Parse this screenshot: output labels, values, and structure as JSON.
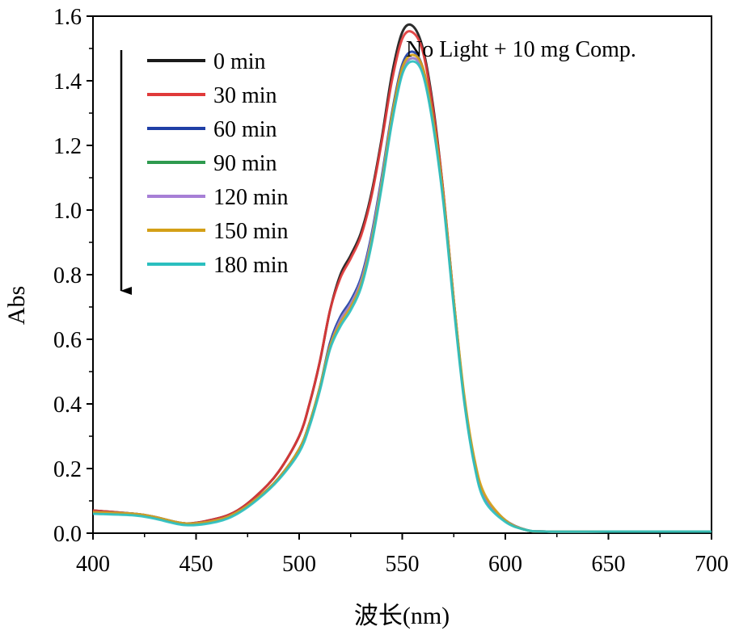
{
  "chart_data": {
    "type": "line",
    "title": "",
    "xlabel": "波长(nm)",
    "ylabel": "Abs",
    "xlim": [
      400,
      700
    ],
    "ylim": [
      0.0,
      1.6
    ],
    "xticks": [
      400,
      450,
      500,
      550,
      600,
      650,
      700
    ],
    "yticks": [
      0.0,
      0.2,
      0.4,
      0.6,
      0.8,
      1.0,
      1.2,
      1.4,
      1.6
    ],
    "xtick_labels": [
      "400",
      "450",
      "500",
      "550",
      "600",
      "650",
      "700"
    ],
    "ytick_labels": [
      "0.0",
      "0.2",
      "0.4",
      "0.6",
      "0.8",
      "1.0",
      "1.2",
      "1.4",
      "1.6"
    ],
    "annotation": "No Light + 10 mg Comp.",
    "legend_position": "top-left",
    "x": [
      400,
      420,
      430,
      445,
      460,
      470,
      480,
      490,
      500,
      505,
      510,
      515,
      520,
      525,
      530,
      535,
      540,
      545,
      550,
      555,
      560,
      565,
      570,
      575,
      580,
      585,
      590,
      600,
      610,
      620,
      650,
      700
    ],
    "series": [
      {
        "name": "0 min",
        "color": "#1a1a1a",
        "values": [
          0.07,
          0.06,
          0.05,
          0.03,
          0.045,
          0.07,
          0.12,
          0.19,
          0.3,
          0.4,
          0.53,
          0.69,
          0.8,
          0.86,
          0.93,
          1.05,
          1.22,
          1.42,
          1.55,
          1.57,
          1.5,
          1.32,
          1.05,
          0.72,
          0.42,
          0.22,
          0.11,
          0.04,
          0.01,
          0.005,
          0.005,
          0.005
        ]
      },
      {
        "name": "30 min",
        "color": "#e03a3a",
        "values": [
          0.07,
          0.06,
          0.05,
          0.03,
          0.045,
          0.07,
          0.12,
          0.19,
          0.3,
          0.4,
          0.53,
          0.69,
          0.79,
          0.85,
          0.92,
          1.04,
          1.21,
          1.4,
          1.53,
          1.55,
          1.49,
          1.31,
          1.05,
          0.72,
          0.42,
          0.22,
          0.11,
          0.04,
          0.01,
          0.005,
          0.005,
          0.005
        ]
      },
      {
        "name": "60 min",
        "color": "#1f3fa6",
        "values": [
          0.065,
          0.06,
          0.05,
          0.03,
          0.04,
          0.065,
          0.11,
          0.17,
          0.26,
          0.34,
          0.45,
          0.59,
          0.67,
          0.72,
          0.79,
          0.92,
          1.1,
          1.3,
          1.45,
          1.49,
          1.44,
          1.28,
          1.03,
          0.71,
          0.42,
          0.22,
          0.11,
          0.04,
          0.01,
          0.005,
          0.005,
          0.005
        ]
      },
      {
        "name": "90 min",
        "color": "#2e9a4f",
        "values": [
          0.065,
          0.06,
          0.05,
          0.03,
          0.04,
          0.065,
          0.11,
          0.17,
          0.26,
          0.34,
          0.45,
          0.58,
          0.66,
          0.71,
          0.78,
          0.91,
          1.09,
          1.29,
          1.43,
          1.47,
          1.43,
          1.27,
          1.03,
          0.71,
          0.42,
          0.22,
          0.11,
          0.04,
          0.01,
          0.005,
          0.005,
          0.005
        ]
      },
      {
        "name": "120 min",
        "color": "#a77fd6",
        "values": [
          0.065,
          0.06,
          0.05,
          0.03,
          0.04,
          0.065,
          0.11,
          0.17,
          0.26,
          0.34,
          0.45,
          0.58,
          0.66,
          0.71,
          0.78,
          0.91,
          1.09,
          1.29,
          1.43,
          1.47,
          1.43,
          1.27,
          1.03,
          0.71,
          0.42,
          0.22,
          0.11,
          0.04,
          0.01,
          0.005,
          0.005,
          0.005
        ]
      },
      {
        "name": "150 min",
        "color": "#d4a017",
        "values": [
          0.065,
          0.06,
          0.05,
          0.03,
          0.04,
          0.065,
          0.11,
          0.17,
          0.26,
          0.34,
          0.45,
          0.58,
          0.65,
          0.7,
          0.77,
          0.9,
          1.08,
          1.29,
          1.44,
          1.48,
          1.44,
          1.28,
          1.04,
          0.72,
          0.43,
          0.23,
          0.12,
          0.04,
          0.01,
          0.005,
          0.005,
          0.005
        ]
      },
      {
        "name": "180 min",
        "color": "#2bbfbf",
        "values": [
          0.06,
          0.055,
          0.045,
          0.025,
          0.035,
          0.06,
          0.105,
          0.165,
          0.25,
          0.33,
          0.44,
          0.57,
          0.64,
          0.69,
          0.76,
          0.89,
          1.07,
          1.27,
          1.42,
          1.46,
          1.42,
          1.26,
          1.02,
          0.7,
          0.41,
          0.21,
          0.1,
          0.035,
          0.01,
          0.005,
          0.005,
          0.005
        ]
      }
    ]
  }
}
